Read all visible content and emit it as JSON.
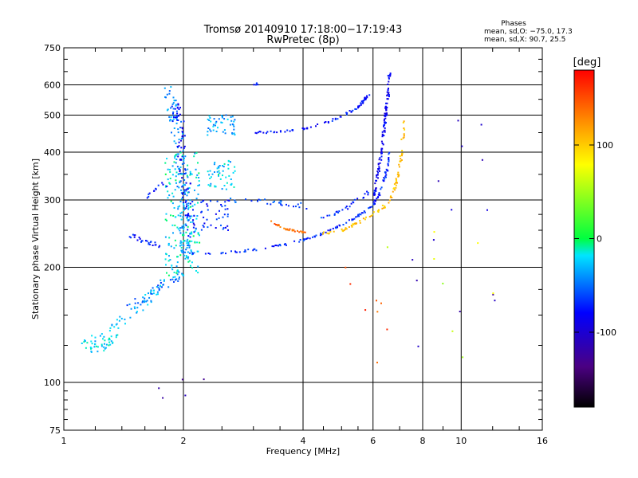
{
  "chart_data": {
    "type": "scatter",
    "title": "Tromsø 20140910 17:18:00−17:19:43",
    "subtitle": "RwPretec (8p)",
    "xlabel": "Frequency [MHz]",
    "ylabel": "Stationary phase Virtual Height [km]",
    "x_scale": "log",
    "y_scale": "log",
    "xlim": [
      1,
      16
    ],
    "ylim": [
      75,
      750
    ],
    "x_ticks": [
      1,
      2,
      4,
      6,
      8,
      10,
      16
    ],
    "y_ticks": [
      75,
      100,
      200,
      300,
      400,
      500,
      600,
      750
    ],
    "grid": true,
    "phases": {
      "title": "Phases",
      "line1": "mean, sd,O:  −75.0, 17.3",
      "line2": "mean, sd,X:  90.7, 25.5"
    },
    "colorbar": {
      "label": "[deg]",
      "range": [
        -180,
        180
      ],
      "ticks": [
        100,
        0,
        -100
      ]
    },
    "traces": [
      {
        "kind": "line",
        "points": [
          [
            1.15,
            135
          ],
          [
            1.25,
            130
          ],
          [
            1.35,
            140
          ],
          [
            1.45,
            150
          ],
          [
            1.55,
            158
          ],
          [
            1.65,
            168
          ],
          [
            1.75,
            180
          ],
          [
            1.85,
            192
          ],
          [
            1.95,
            200
          ]
        ],
        "phase": -30,
        "spread": 0.06,
        "count": 60
      },
      {
        "kind": "line",
        "points": [
          [
            1.12,
            128
          ],
          [
            1.2,
            122
          ],
          [
            1.28,
            126
          ],
          [
            1.35,
            132
          ]
        ],
        "phase": -20,
        "spread": 0.05,
        "count": 40
      },
      {
        "kind": "line",
        "points": [
          [
            1.45,
            160
          ],
          [
            1.6,
            165
          ],
          [
            1.75,
            175
          ],
          [
            1.9,
            185
          ],
          [
            2.0,
            195
          ]
        ],
        "phase": -55,
        "spread": 0.05,
        "count": 35
      },
      {
        "kind": "line",
        "points": [
          [
            1.85,
            580
          ],
          [
            1.9,
            500
          ],
          [
            1.95,
            420
          ],
          [
            1.98,
            350
          ],
          [
            2.0,
            290
          ],
          [
            2.02,
            240
          ],
          [
            2.04,
            210
          ]
        ],
        "phase": -40,
        "spread": 0.07,
        "count": 130
      },
      {
        "kind": "line",
        "points": [
          [
            1.9,
            560
          ],
          [
            1.95,
            470
          ],
          [
            2.0,
            380
          ],
          [
            2.05,
            300
          ],
          [
            2.1,
            240
          ]
        ],
        "phase": -80,
        "spread": 0.06,
        "count": 90
      },
      {
        "kind": "cloud",
        "x": [
          1.8,
          2.2
        ],
        "y": [
          190,
          400
        ],
        "phase": -20,
        "count": 180
      },
      {
        "kind": "cloud",
        "x": [
          2.3,
          2.7
        ],
        "y": [
          320,
          380
        ],
        "phase": -25,
        "count": 50
      },
      {
        "kind": "cloud",
        "x": [
          2.3,
          2.7
        ],
        "y": [
          440,
          500
        ],
        "phase": -35,
        "count": 45
      },
      {
        "kind": "cloud",
        "x": [
          2.2,
          2.6
        ],
        "y": [
          250,
          300
        ],
        "phase": -70,
        "count": 40
      },
      {
        "kind": "line",
        "points": [
          [
            1.4,
            250
          ],
          [
            1.5,
            240
          ],
          [
            1.6,
            232
          ],
          [
            1.75,
            228
          ]
        ],
        "phase": -75,
        "spread": 0.03,
        "count": 25
      },
      {
        "kind": "line",
        "points": [
          [
            2.05,
            218
          ],
          [
            2.5,
            218
          ],
          [
            3.0,
            222
          ],
          [
            3.5,
            228
          ],
          [
            4.0,
            236
          ],
          [
            4.5,
            246
          ],
          [
            5.0,
            258
          ],
          [
            5.5,
            272
          ],
          [
            6.0,
            290
          ],
          [
            6.3,
            320
          ],
          [
            6.5,
            360
          ],
          [
            6.6,
            400
          ]
        ],
        "phase": -70,
        "spread": 0.012,
        "count": 130
      },
      {
        "kind": "line",
        "points": [
          [
            3.0,
            450
          ],
          [
            3.5,
            452
          ],
          [
            4.0,
            460
          ],
          [
            4.5,
            475
          ],
          [
            5.0,
            495
          ],
          [
            5.5,
            525
          ],
          [
            5.9,
            570
          ]
        ],
        "phase": -75,
        "spread": 0.012,
        "count": 75
      },
      {
        "kind": "line",
        "points": [
          [
            6.0,
            300
          ],
          [
            6.2,
            360
          ],
          [
            6.35,
            430
          ],
          [
            6.45,
            500
          ],
          [
            6.55,
            560
          ],
          [
            6.6,
            640
          ]
        ],
        "phase": -85,
        "spread": 0.015,
        "count": 110
      },
      {
        "kind": "line",
        "points": [
          [
            3.3,
            265
          ],
          [
            3.6,
            252
          ],
          [
            3.9,
            248
          ],
          [
            4.1,
            246
          ]
        ],
        "phase": 140,
        "spread": 0.01,
        "count": 30
      },
      {
        "kind": "line",
        "points": [
          [
            4.5,
            245
          ],
          [
            5.0,
            250
          ],
          [
            5.5,
            262
          ],
          [
            6.0,
            275
          ],
          [
            6.5,
            292
          ],
          [
            6.8,
            320
          ],
          [
            7.0,
            360
          ],
          [
            7.1,
            420
          ],
          [
            7.2,
            480
          ]
        ],
        "phase": 105,
        "spread": 0.015,
        "count": 90
      },
      {
        "kind": "line",
        "points": [
          [
            2.6,
            300
          ],
          [
            3.0,
            300
          ],
          [
            3.5,
            295
          ],
          [
            4.0,
            290
          ],
          [
            4.5,
            270
          ]
        ],
        "phase": -60,
        "spread": 0.03,
        "count": 30
      },
      {
        "kind": "line",
        "points": [
          [
            4.5,
            270
          ],
          [
            5.0,
            280
          ],
          [
            5.5,
            300
          ],
          [
            6.0,
            320
          ]
        ],
        "phase": -70,
        "spread": 0.02,
        "count": 25
      },
      {
        "kind": "line",
        "points": [
          [
            1.6,
            305
          ],
          [
            1.7,
            320
          ],
          [
            1.8,
            330
          ]
        ],
        "phase": -75,
        "spread": 0.03,
        "count": 12
      },
      {
        "kind": "line",
        "points": [
          [
            3.0,
            600
          ],
          [
            3.1,
            610
          ]
        ],
        "phase": -80,
        "spread": 0.02,
        "count": 4
      },
      {
        "kind": "cloud",
        "x": [
          7.5,
          12.8
        ],
        "y": [
          100,
          500
        ],
        "phase": -110,
        "count": 14
      },
      {
        "kind": "cloud",
        "x": [
          5.0,
          7.0
        ],
        "y": [
          105,
          200
        ],
        "phase": 150,
        "count": 8
      },
      {
        "kind": "cloud",
        "x": [
          6.5,
          13.5
        ],
        "y": [
          110,
          260
        ],
        "phase": 60,
        "count": 8
      },
      {
        "kind": "cloud",
        "x": [
          1.7,
          2.3
        ],
        "y": [
          90,
          115
        ],
        "phase": -120,
        "count": 5
      }
    ]
  }
}
